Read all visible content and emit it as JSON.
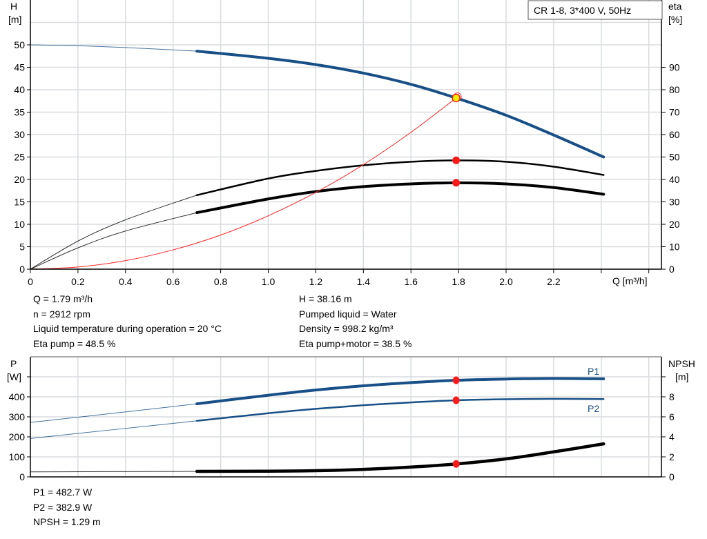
{
  "chart_data": [
    {
      "type": "line",
      "title": "CR 1-8, 3*400 V, 50Hz",
      "xlabel": "Q [m³/h]",
      "ylabel": "H",
      "ylabel_unit": "[m]",
      "y2label": "eta",
      "y2label_unit": "[%]",
      "xlim": [
        0,
        2.66
      ],
      "ylim": [
        0,
        60
      ],
      "y2lim": [
        0,
        120
      ],
      "grid": true,
      "x_ticks": [
        "0",
        "0.2",
        "0.4",
        "0.6",
        "0.8",
        "1.0",
        "1.2",
        "1.4",
        "1.6",
        "1.8",
        "2.0",
        "2.2"
      ],
      "x_tick_values": [
        0,
        0.2,
        0.4,
        0.6,
        0.8,
        1.0,
        1.2,
        1.4,
        1.6,
        1.8,
        2.0,
        2.2
      ],
      "y_ticks": [
        0,
        5,
        10,
        15,
        20,
        25,
        30,
        35,
        40,
        45,
        50
      ],
      "y2_ticks": [
        0,
        10,
        20,
        30,
        40,
        50,
        60,
        70,
        80,
        90
      ],
      "operating_range_start": 0.7,
      "series": [
        {
          "key": "H",
          "axis": "left",
          "color": "#174f86",
          "points": [
            [
              0,
              50
            ],
            [
              0.2,
              49.8
            ],
            [
              0.4,
              49.4
            ],
            [
              0.7,
              48.6
            ],
            [
              1.0,
              47.0
            ],
            [
              1.2,
              45.6
            ],
            [
              1.4,
              43.7
            ],
            [
              1.6,
              41.2
            ],
            [
              1.79,
              38.16
            ],
            [
              2.0,
              34.3
            ],
            [
              2.2,
              29.9
            ],
            [
              2.41,
              25.0
            ]
          ]
        },
        {
          "key": "eta_pump",
          "axis": "right",
          "color": "#000000",
          "points": [
            [
              0,
              0
            ],
            [
              0.2,
              12.5
            ],
            [
              0.4,
              22
            ],
            [
              0.7,
              33
            ],
            [
              1.0,
              40.4
            ],
            [
              1.2,
              43.8
            ],
            [
              1.4,
              46.3
            ],
            [
              1.6,
              47.9
            ],
            [
              1.79,
              48.5
            ],
            [
              2.0,
              47.9
            ],
            [
              2.2,
              45.7
            ],
            [
              2.41,
              42.0
            ]
          ]
        },
        {
          "key": "eta_pump_motor",
          "axis": "right",
          "color": "#000000",
          "points": [
            [
              0,
              0
            ],
            [
              0.2,
              9.5
            ],
            [
              0.4,
              17
            ],
            [
              0.7,
              25.2
            ],
            [
              1.0,
              31.3
            ],
            [
              1.2,
              34.6
            ],
            [
              1.4,
              36.8
            ],
            [
              1.6,
              38.0
            ],
            [
              1.79,
              38.5
            ],
            [
              2.0,
              38.0
            ],
            [
              2.2,
              36.4
            ],
            [
              2.41,
              33.4
            ]
          ]
        },
        {
          "key": "system",
          "axis": "left",
          "color": "#ff2020",
          "points": [
            [
              0,
              0
            ],
            [
              0.2,
              0.48
            ],
            [
              0.4,
              1.9
            ],
            [
              0.6,
              4.3
            ],
            [
              0.8,
              7.6
            ],
            [
              1.0,
              11.9
            ],
            [
              1.2,
              17.1
            ],
            [
              1.4,
              23.3
            ],
            [
              1.6,
              30.5
            ],
            [
              1.79,
              38.16
            ]
          ]
        }
      ],
      "duty_point": {
        "Q": 1.79,
        "H": 38.16,
        "eta_pump": 48.5,
        "eta_pump_motor": 38.5
      }
    },
    {
      "type": "line",
      "ylabel": "P",
      "ylabel_unit": "[W]",
      "y2label": "NPSH",
      "y2label_unit": "[m]",
      "xlim": [
        0,
        2.66
      ],
      "ylim": [
        0,
        600
      ],
      "y2lim": [
        0,
        12
      ],
      "grid": true,
      "y_ticks": [
        0,
        100,
        200,
        300,
        400
      ],
      "y2_ticks": [
        0,
        2,
        4,
        6,
        8
      ],
      "operating_range_start": 0.7,
      "series": [
        {
          "key": "P1",
          "name": "P1",
          "axis": "left",
          "color": "#174f86",
          "points": [
            [
              0,
              272
            ],
            [
              0.35,
              318
            ],
            [
              0.7,
              365
            ],
            [
              1.0,
              408
            ],
            [
              1.2,
              434
            ],
            [
              1.4,
              455
            ],
            [
              1.6,
              471
            ],
            [
              1.79,
              482.7
            ],
            [
              2.0,
              489
            ],
            [
              2.2,
              492
            ],
            [
              2.41,
              490
            ]
          ]
        },
        {
          "key": "P2",
          "name": "P2",
          "axis": "left",
          "color": "#174f86",
          "points": [
            [
              0,
              192
            ],
            [
              0.35,
              236
            ],
            [
              0.7,
              280
            ],
            [
              1.0,
              318
            ],
            [
              1.2,
              340
            ],
            [
              1.4,
              358
            ],
            [
              1.6,
              372
            ],
            [
              1.79,
              382.9
            ],
            [
              2.0,
              388
            ],
            [
              2.2,
              390
            ],
            [
              2.41,
              389
            ]
          ]
        },
        {
          "key": "NPSH",
          "axis": "right",
          "color": "#000000",
          "points": [
            [
              0,
              0.5
            ],
            [
              0.7,
              0.55
            ],
            [
              1.0,
              0.57
            ],
            [
              1.2,
              0.62
            ],
            [
              1.4,
              0.75
            ],
            [
              1.6,
              0.98
            ],
            [
              1.79,
              1.29
            ],
            [
              2.0,
              1.8
            ],
            [
              2.2,
              2.5
            ],
            [
              2.41,
              3.3
            ]
          ]
        }
      ],
      "duty_point": {
        "Q": 1.79,
        "P1": 482.7,
        "P2": 382.9,
        "NPSH": 1.29
      }
    }
  ],
  "info": {
    "left": [
      "Q = 1.79 m³/h",
      "n = 2912 rpm",
      "Liquid temperature during operation = 20 °C",
      "Eta pump = 48.5 %"
    ],
    "right": [
      "H = 38.16 m",
      "Pumped liquid = Water",
      "Density = 998.2 kg/m³",
      "Eta pump+motor = 38.5 %"
    ],
    "bottom": [
      "P1 = 482.7 W",
      "P2 = 382.9 W",
      "NPSH = 1.29 m"
    ]
  },
  "colors": {
    "curve_blue": "#174f86",
    "duty_red": "#ff1a1a",
    "duty_yellow": "#ffee00",
    "grid": "#d9dcdf"
  }
}
